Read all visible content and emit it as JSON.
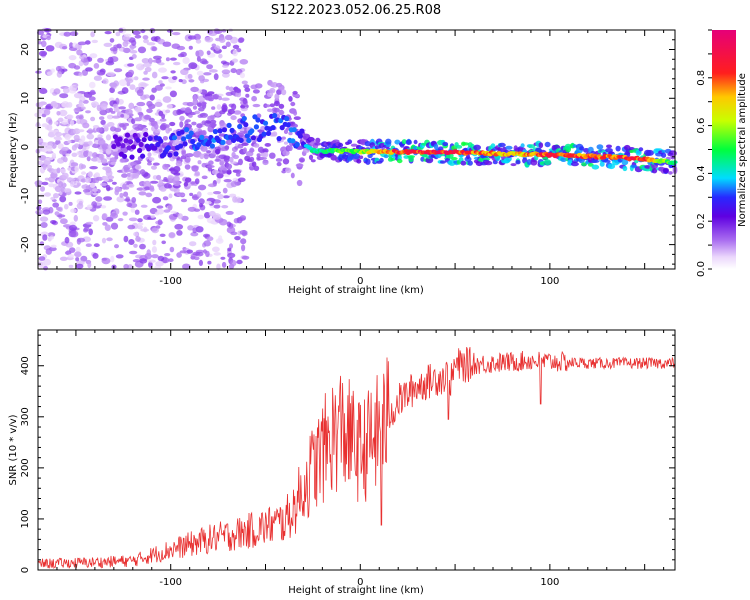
{
  "title": "S122.2023.052.06.25.R08",
  "chart_data": [
    {
      "type": "heatmap",
      "xlabel": "Height of straight line (km)",
      "ylabel": "Frequency (Hz)",
      "xlim": [
        -170,
        166
      ],
      "ylim": [
        -25,
        24
      ],
      "xticks": [
        -100,
        0,
        100
      ],
      "yticks": [
        -20,
        -10,
        0,
        10,
        20
      ],
      "colorbar": {
        "label": "Normalized spectral amplitude",
        "range": [
          0,
          1
        ],
        "ticks": [
          "0.0",
          "0.2",
          "0.4",
          "0.6",
          "0.8"
        ],
        "tick_values": [
          0,
          0.2,
          0.4,
          0.6,
          0.8
        ]
      },
      "ridge": {
        "x": [
          -170,
          -150,
          -120,
          -100,
          -80,
          -60,
          -45,
          -35,
          -30,
          -25,
          -10,
          0,
          20,
          50,
          80,
          100,
          130,
          150,
          166
        ],
        "y": [
          0,
          0,
          0,
          0.5,
          2,
          3.5,
          4.5,
          3,
          0.5,
          -0.8,
          -0.8,
          -0.9,
          -1.0,
          -1.1,
          -1.4,
          -1.6,
          -2.0,
          -2.5,
          -3.2
        ],
        "amplitude": [
          0.15,
          0.18,
          0.22,
          0.3,
          0.32,
          0.3,
          0.3,
          0.32,
          0.3,
          0.45,
          0.55,
          0.6,
          0.85,
          0.9,
          0.7,
          0.85,
          0.8,
          0.88,
          0.45
        ]
      }
    },
    {
      "type": "line",
      "xlabel": "Height of straight line (km)",
      "ylabel": "SNR (10 * v/v)",
      "xlim": [
        -170,
        166
      ],
      "ylim": [
        0,
        470
      ],
      "xticks": [
        -100,
        0,
        100
      ],
      "yticks": [
        0,
        100,
        200,
        300,
        400
      ],
      "color": "#e83030",
      "trend": {
        "x": [
          -170,
          -140,
          -120,
          -100,
          -80,
          -60,
          -40,
          -35,
          -25,
          -15,
          -10,
          0,
          10,
          20,
          30,
          40,
          46,
          48,
          50,
          70,
          90,
          100,
          120,
          166
        ],
        "y": [
          12,
          15,
          18,
          40,
          60,
          75,
          95,
          120,
          200,
          260,
          280,
          230,
          270,
          330,
          360,
          375,
          380,
          370,
          400,
          405,
          410,
          408,
          405,
          405
        ]
      }
    }
  ]
}
